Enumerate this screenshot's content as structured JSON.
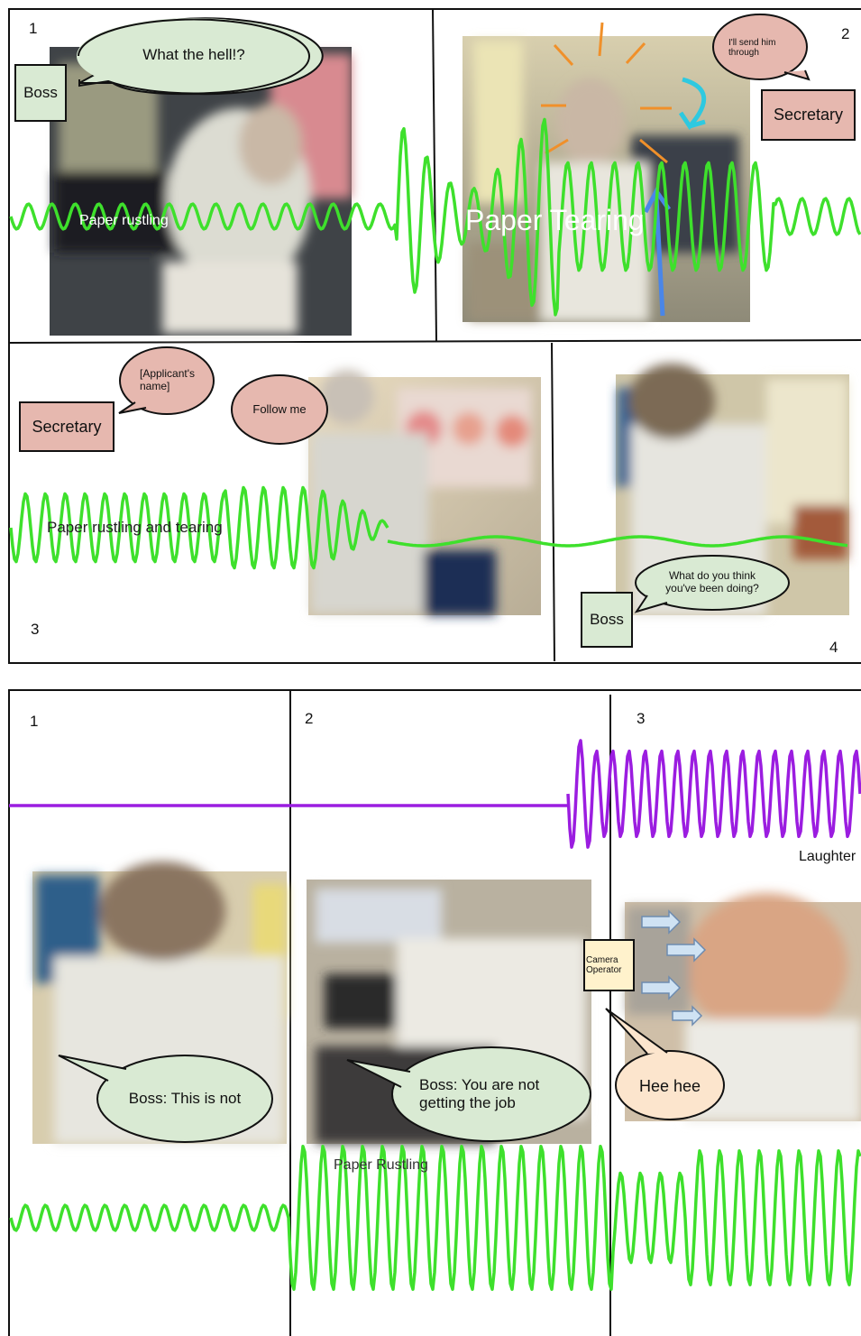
{
  "storyboards": [
    {
      "panels": [
        {
          "number": "1",
          "speech": [
            {
              "speaker": "Boss",
              "text": "What the hell!?"
            }
          ],
          "sound": "Paper rustling"
        },
        {
          "number": "2",
          "speech": [
            {
              "speaker": "Secretary",
              "text": "I'll send him through"
            }
          ],
          "sound": "Paper Tearing"
        },
        {
          "number": "3",
          "speech": [
            {
              "speaker": "Secretary",
              "text": "[Applicant's name]"
            },
            {
              "text": "Follow me"
            }
          ],
          "sound": "Paper rustling and tearing"
        },
        {
          "number": "4",
          "speech": [
            {
              "speaker": "Boss",
              "text": "What do you think you've been doing?"
            }
          ]
        }
      ]
    },
    {
      "panels": [
        {
          "number": "1",
          "speech": [
            {
              "text": "Boss: This is not"
            }
          ]
        },
        {
          "number": "2",
          "speech": [
            {
              "text": "Boss: You are not getting the job"
            }
          ],
          "sound": "Paper Rustling"
        },
        {
          "number": "3",
          "speech": [
            {
              "speaker": "Camera Operator",
              "text": "Hee hee"
            }
          ],
          "sound": "Laughter"
        }
      ]
    }
  ]
}
